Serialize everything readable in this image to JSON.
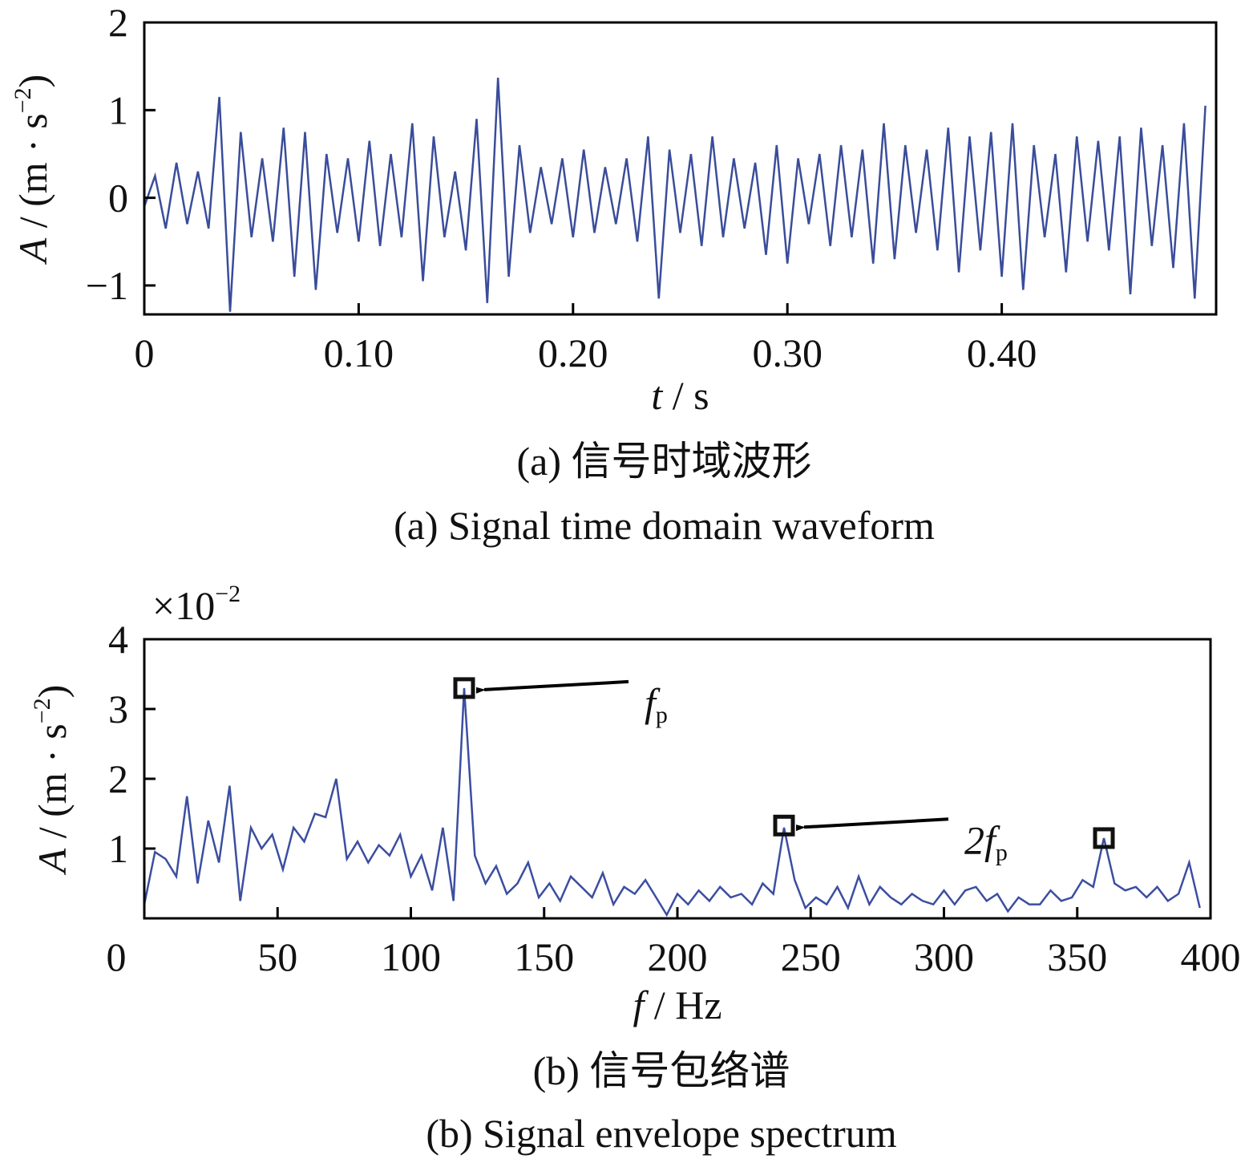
{
  "chart_data": [
    {
      "type": "line",
      "ylabel": [
        "A",
        " / (m · s",
        "−2",
        ")"
      ],
      "xlabel": [
        "t",
        " / s"
      ],
      "caption_cn": "(a)  信号时域波形",
      "caption_en": "(a)  Signal time domain waveform",
      "xlim": [
        0,
        0.5
      ],
      "ylim": [
        -1.33,
        2
      ],
      "xticks": [
        0,
        {
          "value": 0.1,
          "label": "0.10"
        },
        {
          "value": 0.2,
          "label": "0.20"
        },
        {
          "value": 0.3,
          "label": "0.30"
        },
        {
          "value": 0.4,
          "label": "0.40"
        }
      ],
      "yticks": [
        {
          "value": -1,
          "label": "−1"
        },
        0,
        1,
        2
      ],
      "x": [
        0,
        0.005,
        0.01,
        0.015,
        0.02,
        0.025,
        0.03,
        0.035,
        0.04,
        0.045,
        0.05,
        0.055,
        0.06,
        0.065,
        0.07,
        0.075,
        0.08,
        0.085,
        0.09,
        0.095,
        0.1,
        0.105,
        0.11,
        0.115,
        0.12,
        0.125,
        0.13,
        0.135,
        0.14,
        0.145,
        0.15,
        0.155,
        0.16,
        0.165,
        0.17,
        0.175,
        0.18,
        0.185,
        0.19,
        0.195,
        0.2,
        0.205,
        0.21,
        0.215,
        0.22,
        0.225,
        0.23,
        0.235,
        0.24,
        0.245,
        0.25,
        0.255,
        0.26,
        0.265,
        0.27,
        0.275,
        0.28,
        0.285,
        0.29,
        0.295,
        0.3,
        0.305,
        0.31,
        0.315,
        0.32,
        0.325,
        0.33,
        0.335,
        0.34,
        0.345,
        0.35,
        0.355,
        0.36,
        0.365,
        0.37,
        0.375,
        0.38,
        0.385,
        0.39,
        0.395,
        0.4,
        0.405,
        0.41,
        0.415,
        0.42,
        0.425,
        0.43,
        0.435,
        0.44,
        0.445,
        0.45,
        0.455,
        0.46,
        0.465,
        0.47,
        0.475,
        0.48,
        0.485,
        0.49,
        0.495
      ],
      "series": [
        {
          "color": "#3a4d9a",
          "values": [
            -0.1,
            0.25,
            -0.35,
            0.4,
            -0.3,
            0.3,
            -0.35,
            1.15,
            -1.3,
            0.75,
            -0.45,
            0.45,
            -0.5,
            0.8,
            -0.9,
            0.75,
            -1.05,
            0.5,
            -0.4,
            0.45,
            -0.5,
            0.65,
            -0.55,
            0.5,
            -0.45,
            0.85,
            -0.95,
            0.7,
            -0.45,
            0.3,
            -0.6,
            0.9,
            -1.2,
            1.37,
            -0.9,
            0.6,
            -0.4,
            0.35,
            -0.3,
            0.45,
            -0.45,
            0.55,
            -0.4,
            0.35,
            -0.3,
            0.45,
            -0.5,
            0.7,
            -1.15,
            0.55,
            -0.4,
            0.5,
            -0.55,
            0.7,
            -0.45,
            0.45,
            -0.35,
            0.4,
            -0.65,
            0.6,
            -0.75,
            0.45,
            -0.3,
            0.5,
            -0.55,
            0.6,
            -0.45,
            0.55,
            -0.75,
            0.85,
            -0.7,
            0.6,
            -0.4,
            0.55,
            -0.6,
            0.8,
            -0.85,
            0.7,
            -0.6,
            0.75,
            -0.9,
            0.85,
            -1.05,
            0.6,
            -0.45,
            0.5,
            -0.85,
            0.7,
            -0.5,
            0.65,
            -0.6,
            0.7,
            -1.1,
            0.8,
            -0.55,
            0.6,
            -0.8,
            0.85,
            -1.15,
            1.05
          ]
        }
      ]
    },
    {
      "type": "line",
      "ylabel": [
        "A",
        " / (m · s",
        "−2",
        ")"
      ],
      "xlabel": [
        "f",
        " / Hz"
      ],
      "caption_cn": "(b)  信号包络谱",
      "caption_en": "(b)  Signal envelope spectrum",
      "y_multiplier": [
        "×10",
        "−2"
      ],
      "xlim": [
        0,
        400
      ],
      "ylim": [
        0,
        4
      ],
      "xticks": [
        0,
        50,
        100,
        150,
        200,
        250,
        300,
        350,
        400
      ],
      "yticks": [
        1,
        2,
        3,
        4
      ],
      "x": [
        0,
        4,
        8,
        12,
        16,
        20,
        24,
        28,
        32,
        36,
        40,
        44,
        48,
        52,
        56,
        60,
        64,
        68,
        72,
        76,
        80,
        84,
        88,
        92,
        96,
        100,
        104,
        108,
        112,
        116,
        120,
        124,
        128,
        132,
        136,
        140,
        144,
        148,
        152,
        156,
        160,
        164,
        168,
        172,
        176,
        180,
        184,
        188,
        192,
        196,
        200,
        204,
        208,
        212,
        216,
        220,
        224,
        228,
        232,
        236,
        240,
        244,
        248,
        252,
        256,
        260,
        264,
        268,
        272,
        276,
        280,
        284,
        288,
        292,
        296,
        300,
        304,
        308,
        312,
        316,
        320,
        324,
        328,
        332,
        336,
        340,
        344,
        348,
        352,
        356,
        360,
        364,
        368,
        372,
        376,
        380,
        384,
        388,
        392,
        396
      ],
      "series": [
        {
          "color": "#3b4ea0",
          "values": [
            0.2,
            0.95,
            0.85,
            0.6,
            1.75,
            0.5,
            1.4,
            0.8,
            1.9,
            0.25,
            1.3,
            1.0,
            1.2,
            0.7,
            1.3,
            1.1,
            1.5,
            1.45,
            2.0,
            0.85,
            1.1,
            0.8,
            1.05,
            0.9,
            1.2,
            0.6,
            0.9,
            0.4,
            1.3,
            0.25,
            3.3,
            0.9,
            0.5,
            0.75,
            0.35,
            0.5,
            0.8,
            0.3,
            0.5,
            0.25,
            0.6,
            0.45,
            0.3,
            0.65,
            0.2,
            0.45,
            0.35,
            0.55,
            0.3,
            0.05,
            0.35,
            0.2,
            0.4,
            0.25,
            0.45,
            0.3,
            0.35,
            0.2,
            0.5,
            0.35,
            1.3,
            0.55,
            0.15,
            0.3,
            0.2,
            0.45,
            0.15,
            0.6,
            0.2,
            0.45,
            0.3,
            0.2,
            0.35,
            0.25,
            0.2,
            0.4,
            0.2,
            0.4,
            0.45,
            0.25,
            0.35,
            0.1,
            0.3,
            0.2,
            0.2,
            0.4,
            0.25,
            0.3,
            0.55,
            0.45,
            1.15,
            0.5,
            0.4,
            0.45,
            0.3,
            0.45,
            0.25,
            0.35,
            0.8,
            0.15
          ]
        }
      ],
      "markers": [
        {
          "x": 120,
          "y": 3.3
        },
        {
          "x": 240,
          "y": 1.33
        },
        {
          "x": 360,
          "y": 1.15
        }
      ],
      "annotations": [
        {
          "text": "f",
          "sub": "p"
        },
        {
          "text": "2f",
          "sub": "p"
        }
      ]
    }
  ]
}
